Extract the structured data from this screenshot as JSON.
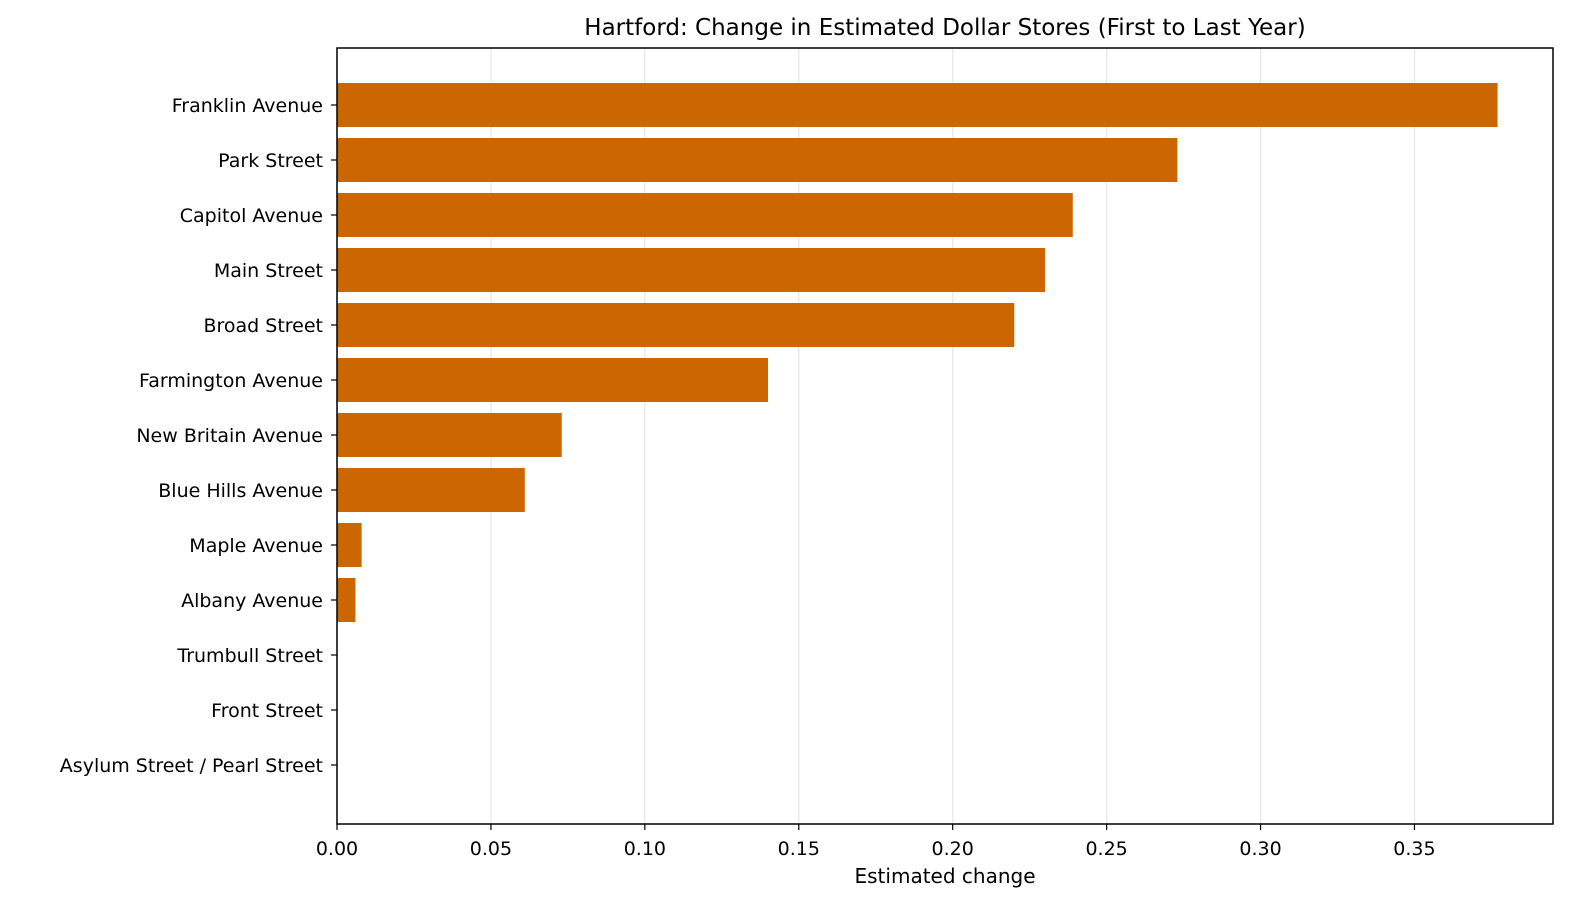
{
  "chart_data": {
    "type": "bar",
    "orientation": "horizontal",
    "title": "Hartford: Change in Estimated Dollar Stores (First to Last Year)",
    "xlabel": "Estimated change",
    "ylabel": "",
    "categories": [
      "Franklin Avenue",
      "Park Street",
      "Capitol Avenue",
      "Main Street",
      "Broad Street",
      "Farmington Avenue",
      "New Britain Avenue",
      "Blue Hills Avenue",
      "Maple Avenue",
      "Albany Avenue",
      "Trumbull Street",
      "Front Street",
      "Asylum Street / Pearl Street"
    ],
    "values": [
      0.377,
      0.273,
      0.239,
      0.23,
      0.22,
      0.14,
      0.073,
      0.061,
      0.008,
      0.006,
      0.0,
      0.0,
      0.0
    ],
    "xlim": [
      0,
      0.395
    ],
    "xticks": [
      0.0,
      0.05,
      0.1,
      0.15,
      0.2,
      0.25,
      0.3,
      0.35
    ],
    "xtick_labels": [
      "0.00",
      "0.05",
      "0.10",
      "0.15",
      "0.20",
      "0.25",
      "0.30",
      "0.35"
    ],
    "grid": "vertical",
    "bar_color": "#cc6600",
    "grid_color": "#e6e6e6",
    "legend": "none"
  }
}
